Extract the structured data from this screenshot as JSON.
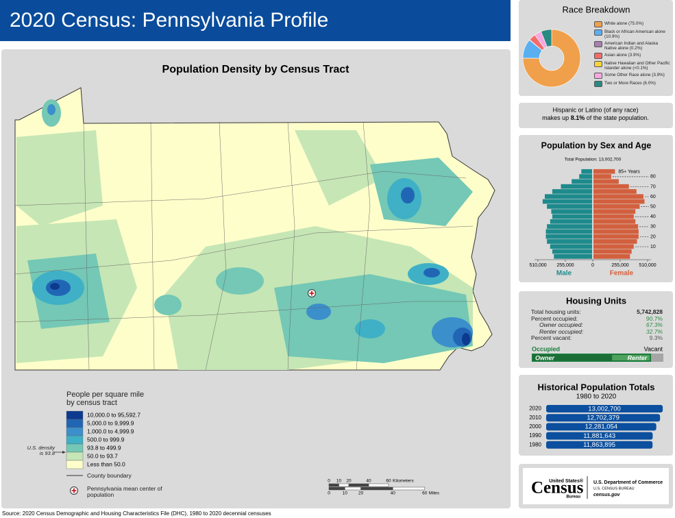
{
  "header": {
    "title": "2020 Census: Pennsylvania Profile"
  },
  "map": {
    "title": "Population Density by Census Tract",
    "legend": {
      "title": "People per square mile by census tract",
      "classes": [
        {
          "label": "10,000.0 to 95,592.7",
          "color": "#0c3a8e"
        },
        {
          "label": "5,000.0 to 9,999.9",
          "color": "#2166b4"
        },
        {
          "label": "1,000.0 to 4,999.9",
          "color": "#3b8fcb"
        },
        {
          "label": "500.0 to 999.9",
          "color": "#3fb0c6"
        },
        {
          "label": "93.8 to 499.9",
          "color": "#74c8b5"
        },
        {
          "label": "50.0 to 93.7",
          "color": "#c6e6b5"
        },
        {
          "label": "Less than 50.0",
          "color": "#fefecb"
        }
      ],
      "us_density_note": "U.S. density is 93.8",
      "county_boundary": "County boundary",
      "mean_center": "Pennsylvania mean center of population"
    },
    "scale": {
      "km_ticks": [
        0,
        10,
        20,
        40,
        60
      ],
      "km_unit": "Kilometers",
      "mi_ticks": [
        0,
        10,
        20,
        40,
        60
      ],
      "mi_unit": "Miles"
    }
  },
  "race": {
    "title": "Race Breakdown",
    "type": "pie",
    "categories": [
      "White alone (75.0%)",
      "Black or African American alone (10.9%)",
      "American Indian and Alaska Native alone (0.2%)",
      "Asian alone (3.9%)",
      "Native Hawaiian and Other Pacific Islander alone (<0.1%)",
      "Some Other Race alone (3.9%)",
      "Two or More Races (6.0%)"
    ],
    "values": [
      75.0,
      10.9,
      0.2,
      3.9,
      0.05,
      3.9,
      6.0
    ],
    "colors": [
      "#f0a04b",
      "#5aaff0",
      "#a77fb0",
      "#f26c6c",
      "#f5d43c",
      "#f7a8e0",
      "#2a8a82"
    ]
  },
  "hispanic": {
    "line1": "Hispanic or Latino (of any race)",
    "prefix": "makes up",
    "highlight": "8.1%",
    "suffix": "of the state population."
  },
  "pyramid": {
    "title": "Population by Sex and Age",
    "subtitle": "Total Population: 13,002,700",
    "type": "pyramid",
    "categories": [
      null,
      null,
      "10",
      null,
      "20",
      null,
      "30",
      null,
      "40",
      null,
      "50",
      null,
      "60",
      null,
      "70",
      null,
      "80",
      "85+ Years"
    ],
    "series": [
      {
        "name": "Male",
        "color": "#1e8a8c",
        "values": [
          355000,
          370000,
          390000,
          420000,
          430000,
          430000,
          420000,
          390000,
          370000,
          380000,
          420000,
          460000,
          440000,
          370000,
          290000,
          190000,
          120000,
          100000
        ]
      },
      {
        "name": "Female",
        "color": "#d2603e",
        "values": [
          340000,
          355000,
          375000,
          405000,
          420000,
          420000,
          415000,
          390000,
          375000,
          390000,
          430000,
          475000,
          465000,
          400000,
          330000,
          235000,
          165000,
          200000
        ]
      }
    ],
    "xlim": [
      0,
      510000
    ],
    "xticks": [
      0,
      {
        "value": 255000,
        "label": "255,000"
      },
      {
        "value": 510000,
        "label": "510,000"
      }
    ]
  },
  "housing": {
    "title": "Housing Units",
    "rows": [
      {
        "label": "Total housing units:",
        "value": 5742828,
        "value_label": "5,742,828"
      },
      {
        "label": "Percent occupied:",
        "value": 90.7,
        "value_label": "90.7%"
      },
      {
        "label": "Owner occupied:",
        "value": 67.3,
        "value_label": "67.3%"
      },
      {
        "label": "Renter occupied:",
        "value": 32.7,
        "value_label": "32.7%"
      },
      {
        "label": "Percent vacant:",
        "value": 9.3,
        "value_label": "9.3%"
      }
    ],
    "bar": {
      "occupied": "Occupied",
      "vacant": "Vacant",
      "owner": "Owner",
      "renter": "Renter"
    }
  },
  "history": {
    "title": "Historical Population Totals",
    "subtitle": "1980 to 2020",
    "type": "bar",
    "categories": [
      "2020",
      "2010",
      "2000",
      "1990",
      "1980"
    ],
    "values": [
      13002700,
      12702379,
      12281054,
      11881643,
      11863895
    ],
    "value_labels": [
      "13,002,700",
      "12,702,379",
      "12,281,054",
      "11,881,643",
      "11,863,895"
    ],
    "color": "#0b4f9e",
    "xlim": [
      0,
      13300000
    ]
  },
  "logo": {
    "agency_top": "United States®",
    "wordmark": "Census",
    "agency_bottom": "Bureau",
    "dept": "U.S. Department of Commerce",
    "bureau": "U.S. CENSUS BUREAU",
    "url": "census.gov"
  },
  "footer": {
    "source": "Source: 2020 Census Demographic and Housing Characteristics File (DHC), 1980 to 2020 decennial censuses"
  }
}
